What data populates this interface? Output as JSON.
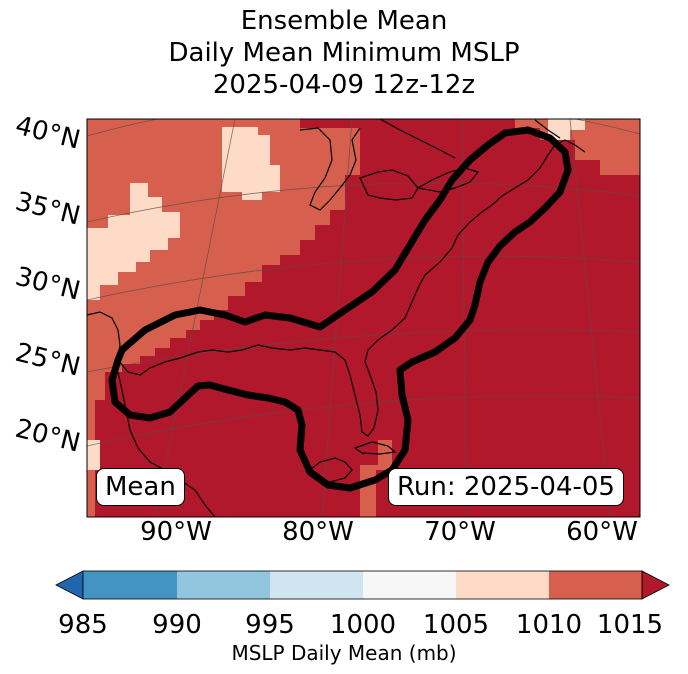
{
  "title": {
    "line1": "Ensemble Mean",
    "line2": "Daily Mean Minimum MSLP",
    "line3": "2025-04-09 12z-12z"
  },
  "map": {
    "lat_labels": [
      "40°N",
      "35°N",
      "30°N",
      "25°N",
      "20°N"
    ],
    "lon_labels": [
      "90°W",
      "80°W",
      "70°W",
      "60°W"
    ],
    "mean_label": "Mean",
    "run_label": "Run: 2025-04-05"
  },
  "colorbar": {
    "ticks": [
      "985",
      "990",
      "995",
      "1000",
      "1005",
      "1010",
      "1015"
    ],
    "label": "MSLP Daily Mean (mb)",
    "colors": [
      "#2166ac",
      "#4393c3",
      "#92c5de",
      "#d1e5f0",
      "#f7f7f7",
      "#fddbc7",
      "#d6604d",
      "#b2182b"
    ]
  }
}
